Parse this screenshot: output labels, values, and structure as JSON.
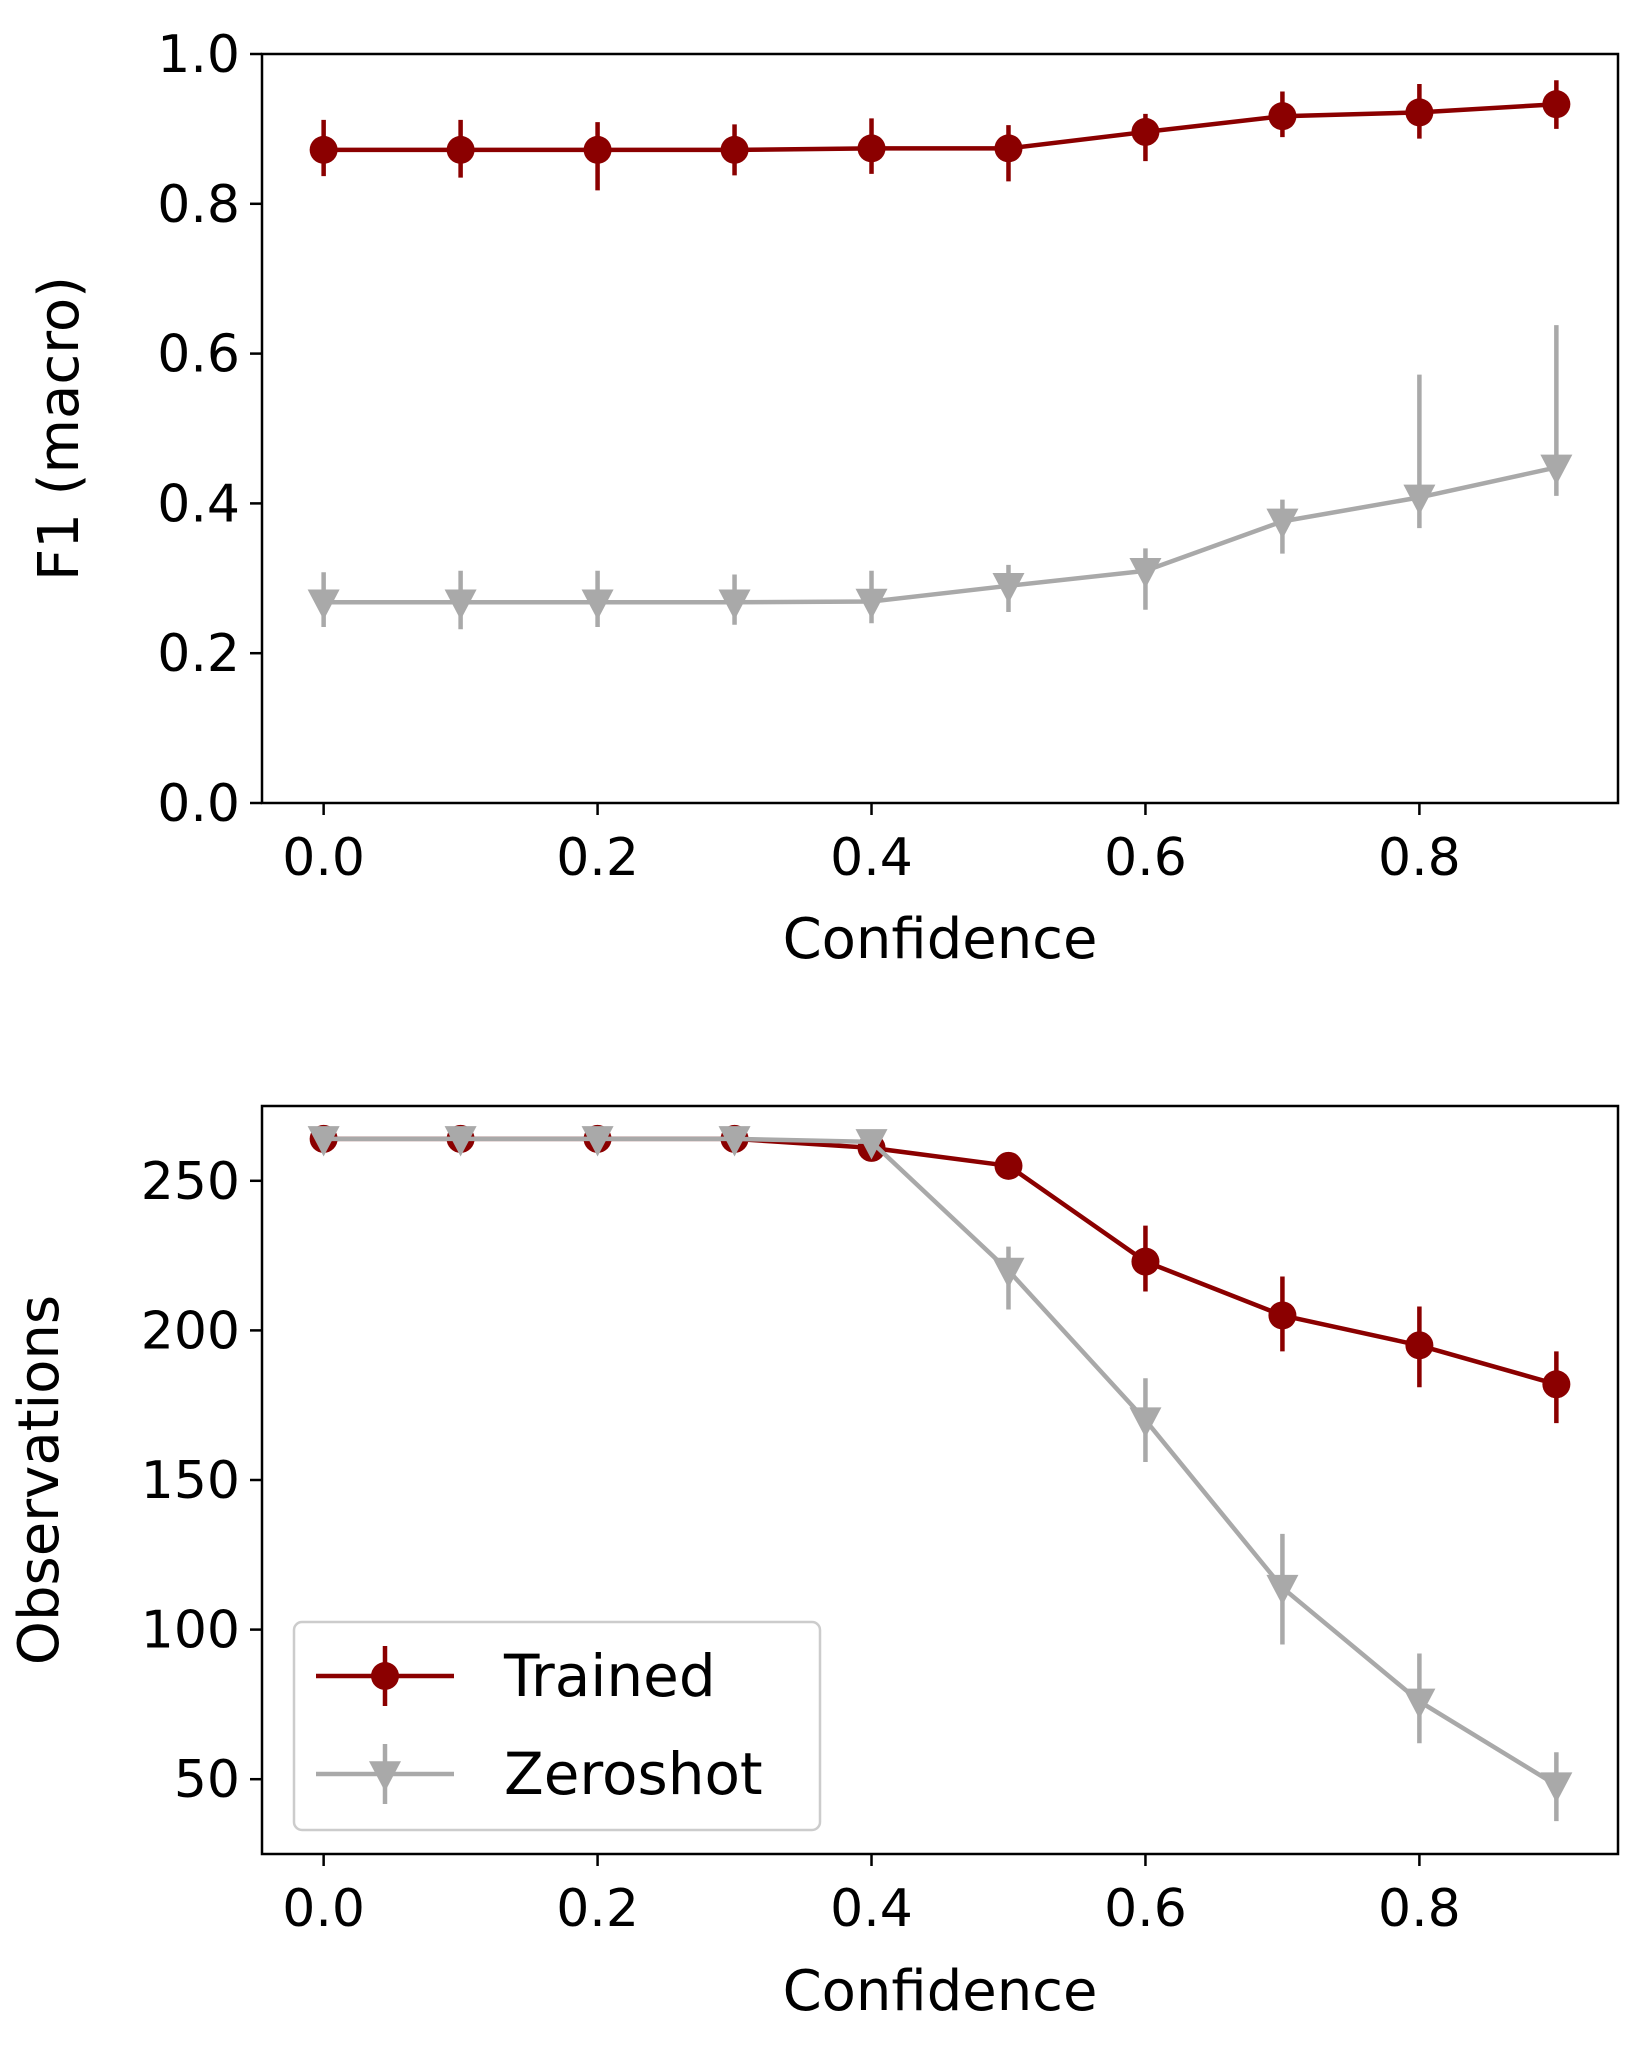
{
  "colors": {
    "trained": "#8b0000",
    "zeroshot": "#a9a9a9",
    "axis": "#000000"
  },
  "chart_data": [
    {
      "type": "line",
      "title": "",
      "xlabel": "Confidence",
      "ylabel": "F1 (macro)",
      "xlim": [
        -0.045,
        0.945
      ],
      "ylim": [
        0.0,
        1.0
      ],
      "xticks": [
        0.0,
        0.2,
        0.4,
        0.6,
        0.8
      ],
      "xtick_labels": [
        "0.0",
        "0.2",
        "0.4",
        "0.6",
        "0.8"
      ],
      "yticks": [
        0.0,
        0.2,
        0.4,
        0.6,
        0.8,
        1.0
      ],
      "ytick_labels": [
        "0.0",
        "0.2",
        "0.4",
        "0.6",
        "0.8",
        "1.0"
      ],
      "x": [
        0.0,
        0.1,
        0.2,
        0.3,
        0.4,
        0.5,
        0.6,
        0.7,
        0.8,
        0.9
      ],
      "series": [
        {
          "name": "Trained",
          "marker": "circle",
          "values": [
            0.872,
            0.872,
            0.872,
            0.872,
            0.874,
            0.874,
            0.896,
            0.917,
            0.922,
            0.933
          ],
          "err_low": [
            0.837,
            0.835,
            0.818,
            0.838,
            0.84,
            0.83,
            0.857,
            0.889,
            0.887,
            0.9
          ],
          "err_high": [
            0.912,
            0.912,
            0.909,
            0.906,
            0.914,
            0.905,
            0.92,
            0.95,
            0.96,
            0.965
          ]
        },
        {
          "name": "Zeroshot",
          "marker": "triangle-down",
          "values": [
            0.268,
            0.268,
            0.268,
            0.268,
            0.269,
            0.29,
            0.31,
            0.376,
            0.408,
            0.448
          ],
          "err_low": [
            0.235,
            0.232,
            0.235,
            0.238,
            0.24,
            0.255,
            0.258,
            0.333,
            0.367,
            0.41
          ],
          "err_high": [
            0.308,
            0.31,
            0.31,
            0.305,
            0.31,
            0.318,
            0.34,
            0.405,
            0.572,
            0.638
          ]
        }
      ]
    },
    {
      "type": "line",
      "title": "",
      "xlabel": "Confidence",
      "ylabel": "Observations",
      "xlim": [
        -0.045,
        0.945
      ],
      "ylim": [
        25,
        275
      ],
      "xticks": [
        0.0,
        0.2,
        0.4,
        0.6,
        0.8
      ],
      "xtick_labels": [
        "0.0",
        "0.2",
        "0.4",
        "0.6",
        "0.8"
      ],
      "yticks": [
        50,
        100,
        150,
        200,
        250
      ],
      "ytick_labels": [
        "50",
        "100",
        "150",
        "200",
        "250"
      ],
      "x": [
        0.0,
        0.1,
        0.2,
        0.3,
        0.4,
        0.5,
        0.6,
        0.7,
        0.8,
        0.9
      ],
      "legend": {
        "location": "lower-left",
        "entries": [
          "Trained",
          "Zeroshot"
        ]
      },
      "series": [
        {
          "name": "Trained",
          "marker": "circle",
          "values": [
            264,
            264,
            264,
            264,
            261,
            255,
            223,
            205,
            195,
            182
          ],
          "err_low": [
            264,
            264,
            264,
            264,
            260,
            253,
            213,
            193,
            181,
            169
          ],
          "err_high": [
            264,
            264,
            264,
            264,
            262,
            257,
            235,
            218,
            208,
            193
          ]
        },
        {
          "name": "Zeroshot",
          "marker": "triangle-down",
          "values": [
            264,
            264,
            264,
            264,
            263,
            220,
            170,
            114,
            76,
            48
          ],
          "err_low": [
            264,
            264,
            264,
            264,
            262,
            207,
            156,
            95,
            62,
            36
          ],
          "err_high": [
            264,
            264,
            264,
            264,
            264,
            228,
            184,
            132,
            92,
            59
          ]
        }
      ]
    }
  ]
}
